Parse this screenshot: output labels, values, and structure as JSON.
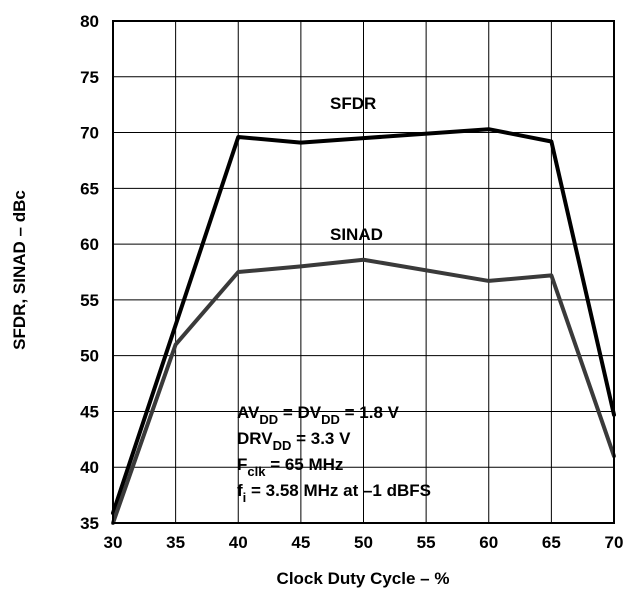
{
  "chart_data": {
    "type": "line",
    "xlabel": "Clock Duty Cycle – %",
    "ylabel": "SFDR, SINAD – dBc",
    "xlim": [
      30,
      70
    ],
    "ylim": [
      35,
      80
    ],
    "xticks": [
      30,
      35,
      40,
      45,
      50,
      55,
      60,
      65,
      70
    ],
    "yticks": [
      35,
      40,
      45,
      50,
      55,
      60,
      65,
      70,
      75,
      80
    ],
    "grid": true,
    "series": [
      {
        "name": "SFDR",
        "color": "#000000",
        "x": [
          30,
          40,
          45,
          50,
          60,
          65,
          70
        ],
        "y": [
          35.9,
          69.6,
          69.1,
          69.5,
          70.3,
          69.2,
          44.7
        ]
      },
      {
        "name": "SINAD",
        "color": "#3a3a3a",
        "x": [
          30,
          35,
          40,
          45,
          50,
          60,
          65,
          70
        ],
        "y": [
          35.0,
          51.0,
          57.5,
          58.0,
          58.6,
          56.7,
          57.2,
          41.0
        ]
      }
    ],
    "annotations": {
      "line1": {
        "a": "AV",
        "a_sub": "DD",
        "b": " = DV",
        "b_sub": "DD",
        "c": " = 1.8 V"
      },
      "line2": {
        "a": "DRV",
        "a_sub": "DD",
        "b": " = 3.3 V"
      },
      "line3": {
        "a": "F",
        "a_sub": "clk",
        "b": " = 65 MHz"
      },
      "line4": {
        "a": "f",
        "a_sub": "i",
        "b": " = 3.58 MHz at –1 dBFS"
      }
    }
  }
}
